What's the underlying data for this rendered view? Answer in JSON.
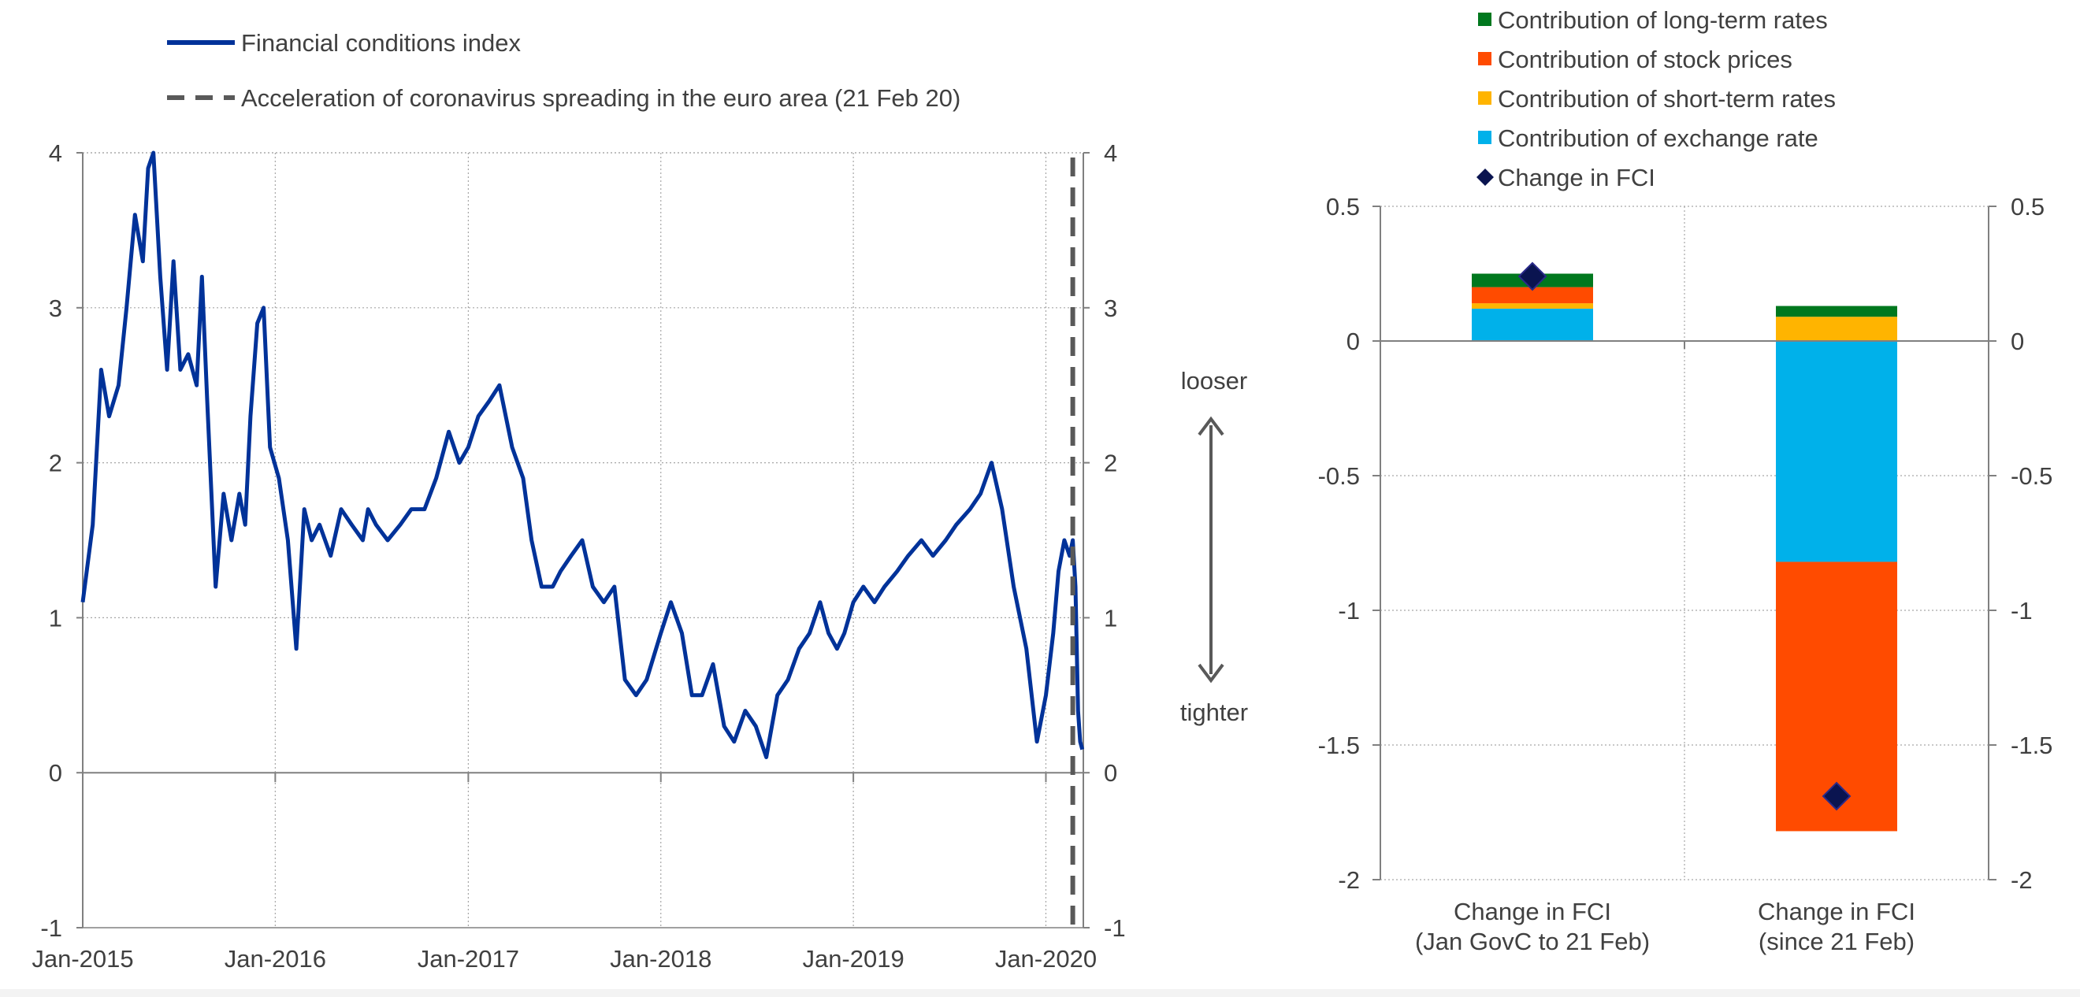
{
  "chart_data": [
    {
      "type": "line",
      "title": "",
      "xlabel": "",
      "ylabel": "",
      "ylim": [
        -1,
        4
      ],
      "yticks": [
        "-1",
        "0",
        "1",
        "2",
        "3",
        "4"
      ],
      "xtick_labels": [
        "Jan-2015",
        "Jan-2016",
        "Jan-2017",
        "Jan-2018",
        "Jan-2019",
        "Jan-2020"
      ],
      "xlim": [
        "2015-01-01",
        "2020-03-12"
      ],
      "grid": true,
      "legend_position": "top-left",
      "legend": {
        "line_label": "Financial conditions index",
        "vline_label": "Acceleration of coronavirus spreading in the euro area (21 Feb 20)"
      },
      "annotations": {
        "up": "looser",
        "down": "tighter"
      },
      "series": [
        {
          "name": "Financial conditions index",
          "color": "#003299",
          "x": [
            "2015-01-01",
            "2015-01-20",
            "2015-02-05",
            "2015-02-20",
            "2015-03-10",
            "2015-03-25",
            "2015-04-10",
            "2015-04-25",
            "2015-05-05",
            "2015-05-15",
            "2015-05-28",
            "2015-06-10",
            "2015-06-22",
            "2015-07-05",
            "2015-07-20",
            "2015-08-05",
            "2015-08-15",
            "2015-08-25",
            "2015-09-10",
            "2015-09-25",
            "2015-10-10",
            "2015-10-25",
            "2015-11-05",
            "2015-11-15",
            "2015-11-28",
            "2015-12-10",
            "2015-12-22",
            "2016-01-08",
            "2016-01-25",
            "2016-02-10",
            "2016-02-25",
            "2016-03-10",
            "2016-03-25",
            "2016-04-15",
            "2016-05-05",
            "2016-05-25",
            "2016-06-15",
            "2016-06-25",
            "2016-07-10",
            "2016-08-01",
            "2016-08-25",
            "2016-09-15",
            "2016-10-10",
            "2016-11-01",
            "2016-11-25",
            "2016-12-15",
            "2017-01-01",
            "2017-01-20",
            "2017-02-10",
            "2017-03-01",
            "2017-03-25",
            "2017-04-15",
            "2017-05-01",
            "2017-05-20",
            "2017-06-10",
            "2017-06-25",
            "2017-07-15",
            "2017-08-05",
            "2017-08-25",
            "2017-09-15",
            "2017-10-05",
            "2017-10-25",
            "2017-11-15",
            "2017-12-05",
            "2018-01-01",
            "2018-01-20",
            "2018-02-10",
            "2018-03-01",
            "2018-03-20",
            "2018-04-10",
            "2018-05-01",
            "2018-05-20",
            "2018-06-10",
            "2018-06-30",
            "2018-07-20",
            "2018-08-10",
            "2018-08-30",
            "2018-09-20",
            "2018-10-10",
            "2018-10-30",
            "2018-11-15",
            "2018-12-01",
            "2018-12-15",
            "2019-01-01",
            "2019-01-20",
            "2019-02-10",
            "2019-03-01",
            "2019-03-25",
            "2019-04-15",
            "2019-05-10",
            "2019-06-01",
            "2019-06-25",
            "2019-07-15",
            "2019-08-10",
            "2019-08-30",
            "2019-09-20",
            "2019-10-10",
            "2019-11-01",
            "2019-11-25",
            "2019-12-15",
            "2020-01-01",
            "2020-01-15",
            "2020-01-25",
            "2020-02-05",
            "2020-02-15",
            "2020-02-21",
            "2020-02-26",
            "2020-03-02",
            "2020-03-06",
            "2020-03-10"
          ],
          "values": [
            1.1,
            1.6,
            2.6,
            2.3,
            2.5,
            3.0,
            3.6,
            3.3,
            3.9,
            4.0,
            3.2,
            2.6,
            3.3,
            2.6,
            2.7,
            2.5,
            3.2,
            2.4,
            1.2,
            1.8,
            1.5,
            1.8,
            1.6,
            2.3,
            2.9,
            3.0,
            2.1,
            1.9,
            1.5,
            0.8,
            1.7,
            1.5,
            1.6,
            1.4,
            1.7,
            1.6,
            1.5,
            1.7,
            1.6,
            1.5,
            1.6,
            1.7,
            1.7,
            1.9,
            2.2,
            2.0,
            2.1,
            2.3,
            2.4,
            2.5,
            2.1,
            1.9,
            1.5,
            1.2,
            1.2,
            1.3,
            1.4,
            1.5,
            1.2,
            1.1,
            1.2,
            0.6,
            0.5,
            0.6,
            0.9,
            1.1,
            0.9,
            0.5,
            0.5,
            0.7,
            0.3,
            0.2,
            0.4,
            0.3,
            0.1,
            0.5,
            0.6,
            0.8,
            0.9,
            1.1,
            0.9,
            0.8,
            0.9,
            1.1,
            1.2,
            1.1,
            1.2,
            1.3,
            1.4,
            1.5,
            1.4,
            1.5,
            1.6,
            1.7,
            1.8,
            2.0,
            1.7,
            1.2,
            0.8,
            0.2,
            0.5,
            0.9,
            1.3,
            1.5,
            1.4,
            1.5,
            1.2,
            0.4,
            0.2,
            0.15
          ]
        }
      ],
      "vline": {
        "x": "2020-02-21",
        "color": "#595959"
      }
    },
    {
      "type": "bar",
      "stacked": true,
      "title": "",
      "xlabel": "",
      "ylabel": "",
      "ylim": [
        -2,
        0.5
      ],
      "yticks": [
        "0.5",
        "0",
        "-0.5",
        "-1",
        "-1.5",
        "-2"
      ],
      "categories": [
        [
          "Change in FCI",
          "(Jan GovC to 21 Feb)"
        ],
        [
          "Change in FCI",
          "(since 21 Feb)"
        ]
      ],
      "grid": true,
      "legend_position": "top",
      "series": [
        {
          "name": "Contribution of long-term rates",
          "color": "#00781e",
          "values": [
            0.05,
            0.04
          ]
        },
        {
          "name": "Contribution of stock prices",
          "color": "#ff4b00",
          "values": [
            0.06,
            -1.0
          ]
        },
        {
          "name": "Contribution of short-term rates",
          "color": "#ffb400",
          "values": [
            0.02,
            0.09
          ]
        },
        {
          "name": "Contribution of exchange rate",
          "color": "#00b1ea",
          "values": [
            0.12,
            -0.82
          ]
        }
      ],
      "points": {
        "name": "Change in FCI",
        "color": "#0a1450",
        "values": [
          0.24,
          -1.69
        ]
      }
    }
  ]
}
